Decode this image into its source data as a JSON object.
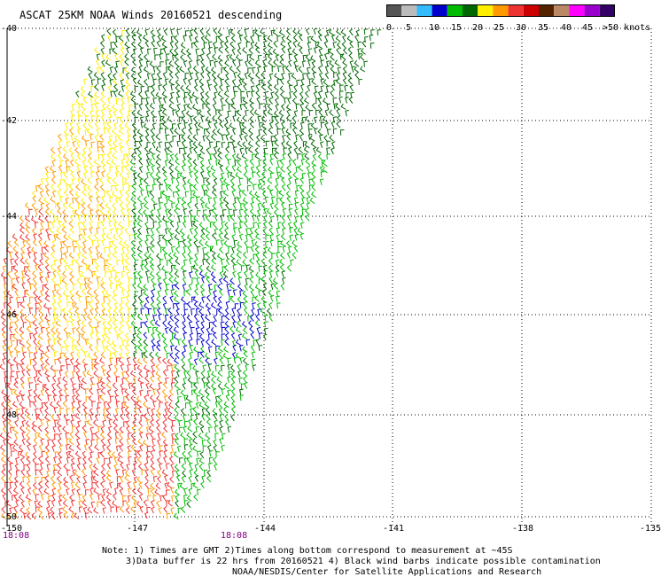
{
  "title": "ASCAT 25KM NOAA Winds 20160521 descending",
  "legend": {
    "labels": [
      "0",
      "5",
      "10",
      "15",
      "20",
      "25",
      "30",
      "35",
      "40",
      "45",
      ">50 knots"
    ],
    "colors": [
      "#555555",
      "#bbbbbb",
      "#33bbff",
      "#0000cc",
      "#00bb00",
      "#006600",
      "#ffee00",
      "#ff9900",
      "#ee3333",
      "#cc0000",
      "#552200",
      "#bb8866",
      "#ff00ff",
      "#9900cc",
      "#330066"
    ]
  },
  "axes": {
    "lat_labels": [
      "-40",
      "-42",
      "-44",
      "-46",
      "-48",
      "-50"
    ],
    "lon_labels": [
      "-150",
      "-147",
      "-144",
      "-141",
      "-138",
      "-135"
    ]
  },
  "times": [
    "18:08",
    "18:08"
  ],
  "notes": [
    "Note: 1) Times are GMT 2)Times along bottom correspond to measurement at ~45S",
    "3)Data buffer is 22 hrs from 20160521 4) Black wind barbs indicate possible contamination",
    "NOAA/NESDIS/Center for Satellite Applications and Research"
  ],
  "wind_field": {
    "units": "knots",
    "speed_colors": {
      "0-5": "#555555",
      "10-15": "#0000cc",
      "15-20": "#00bb00",
      "20-25": "#006600",
      "25-30": "#ffee00",
      "30-35": "#ff9900",
      "35-40": "#ee3333"
    }
  }
}
